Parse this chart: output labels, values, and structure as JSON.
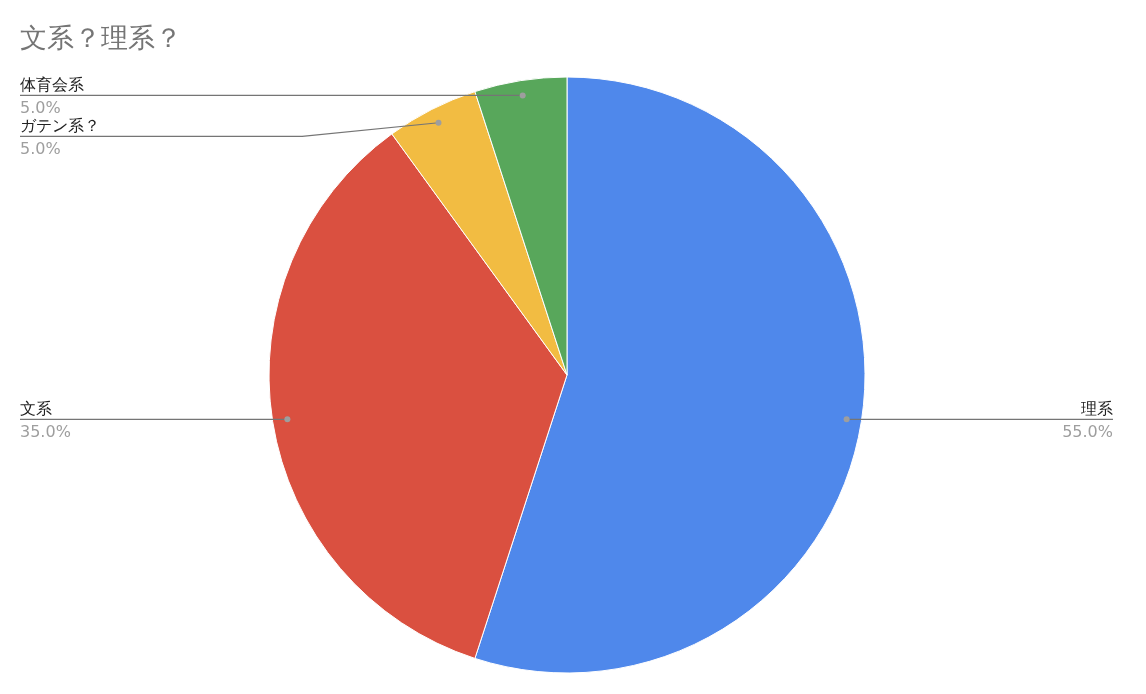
{
  "chart_data": {
    "type": "pie",
    "title": "文系？理系？",
    "categories": [
      "理系",
      "文系",
      "ガテン系？",
      "体育会系"
    ],
    "values": [
      55,
      35,
      5,
      5
    ],
    "colors": [
      "#4f88eb",
      "#da5040",
      "#f2bc42",
      "#58a75b"
    ],
    "value_labels": [
      "55.0%",
      "35.0%",
      "5.0%",
      "5.0%"
    ]
  }
}
